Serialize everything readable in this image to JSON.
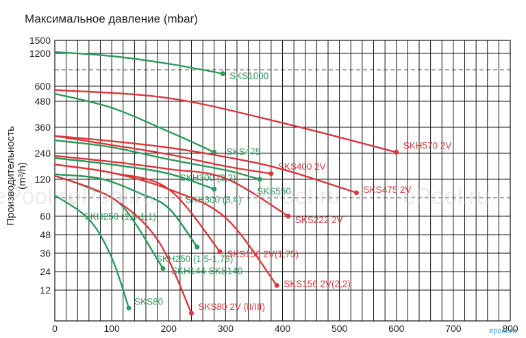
{
  "chart_data": {
    "type": "line",
    "title": "Максимальное давление (mbar)",
    "ylabel": "Производительность (m³/h)",
    "xlabel": "",
    "xlim": [
      0,
      800
    ],
    "x_ticks": [
      0,
      100,
      200,
      300,
      400,
      500,
      600,
      700,
      800
    ],
    "y_tick_labels": [
      "12",
      "24",
      "36",
      "48",
      "60",
      "120",
      "240",
      "360",
      "480",
      "600",
      "1200",
      "1500"
    ],
    "grid": true,
    "series": [
      {
        "name": "SKS1000",
        "color": "#2e9a5e",
        "points": [
          [
            0,
            1230
          ],
          [
            100,
            1150
          ],
          [
            200,
            1010
          ],
          [
            295,
            830
          ]
        ]
      },
      {
        "name": "SKS475",
        "color": "#2e9a5e",
        "points": [
          [
            0,
            540
          ],
          [
            100,
            450
          ],
          [
            200,
            340
          ],
          [
            280,
            245
          ]
        ]
      },
      {
        "name": "SKS550",
        "color": "#2e9a5e",
        "points": [
          [
            0,
            300
          ],
          [
            100,
            268
          ],
          [
            200,
            212
          ],
          [
            300,
            162
          ],
          [
            360,
            120
          ]
        ]
      },
      {
        "name": "SKH300 (2,2)",
        "color": "#2e9a5e",
        "points": [
          [
            0,
            218
          ],
          [
            100,
            188
          ],
          [
            200,
            146
          ],
          [
            280,
            104
          ]
        ]
      },
      {
        "name": "SKH300 (3,4)",
        "color": "#2e9a5e",
        "points": [
          [
            0,
            218
          ],
          [
            100,
            188
          ],
          [
            200,
            146
          ],
          [
            280,
            104
          ]
        ]
      },
      {
        "name": "SKH250 (1,3-1,1)",
        "color": "#2e9a5e",
        "points": [
          [
            0,
            143
          ],
          [
            80,
            123
          ],
          [
            150,
            97
          ],
          [
            200,
            73
          ],
          [
            250,
            40
          ]
        ]
      },
      {
        "name": "SKH250 (1,5-1,75)",
        "color": "#2e9a5e",
        "points": [
          [
            0,
            143
          ],
          [
            80,
            123
          ],
          [
            150,
            97
          ],
          [
            200,
            73
          ],
          [
            250,
            40
          ]
        ]
      },
      {
        "name": "SKH144-SKS140",
        "color": "#2e9a5e",
        "points": [
          [
            0,
            136
          ],
          [
            60,
            106
          ],
          [
            120,
            75
          ],
          [
            190,
            26
          ]
        ]
      },
      {
        "name": "SKS80",
        "color": "#2e9a5e",
        "points": [
          [
            0,
            94
          ],
          [
            60,
            58
          ],
          [
            100,
            33
          ],
          [
            130,
            5
          ]
        ]
      },
      {
        "name": "SKH570 2V",
        "color": "#d9373b",
        "points": [
          [
            0,
            570
          ],
          [
            200,
            505
          ],
          [
            400,
            380
          ],
          [
            600,
            245
          ]
        ]
      },
      {
        "name": "SKS400 2V",
        "color": "#d9373b",
        "points": [
          [
            0,
            320
          ],
          [
            100,
            278
          ],
          [
            200,
            235
          ],
          [
            300,
            180
          ],
          [
            380,
            146
          ]
        ]
      },
      {
        "name": "SKS475 2V",
        "color": "#d9373b",
        "points": [
          [
            0,
            320
          ],
          [
            100,
            296
          ],
          [
            200,
            266
          ],
          [
            300,
            223
          ],
          [
            400,
            166
          ],
          [
            530,
            98
          ]
        ]
      },
      {
        "name": "SKS222 2V",
        "color": "#d9373b",
        "points": [
          [
            0,
            228
          ],
          [
            100,
            201
          ],
          [
            200,
            167
          ],
          [
            300,
            124
          ],
          [
            410,
            60
          ]
        ]
      },
      {
        "name": "SKS156 2V(1,75)",
        "color": "#d9373b",
        "points": [
          [
            0,
            188
          ],
          [
            100,
            150
          ],
          [
            200,
            104
          ],
          [
            290,
            37
          ]
        ]
      },
      {
        "name": "SKS156 2V(2,2)",
        "color": "#d9373b",
        "points": [
          [
            0,
            188
          ],
          [
            100,
            150
          ],
          [
            200,
            104
          ],
          [
            300,
            59
          ],
          [
            390,
            15
          ]
        ]
      },
      {
        "name": "SKS80 2V (II/III)",
        "color": "#d9373b",
        "points": [
          [
            0,
            136
          ],
          [
            100,
            90
          ],
          [
            180,
            45
          ],
          [
            240,
            3
          ]
        ]
      }
    ]
  },
  "watermark": "ePool.ru",
  "logo": "epool.ru"
}
